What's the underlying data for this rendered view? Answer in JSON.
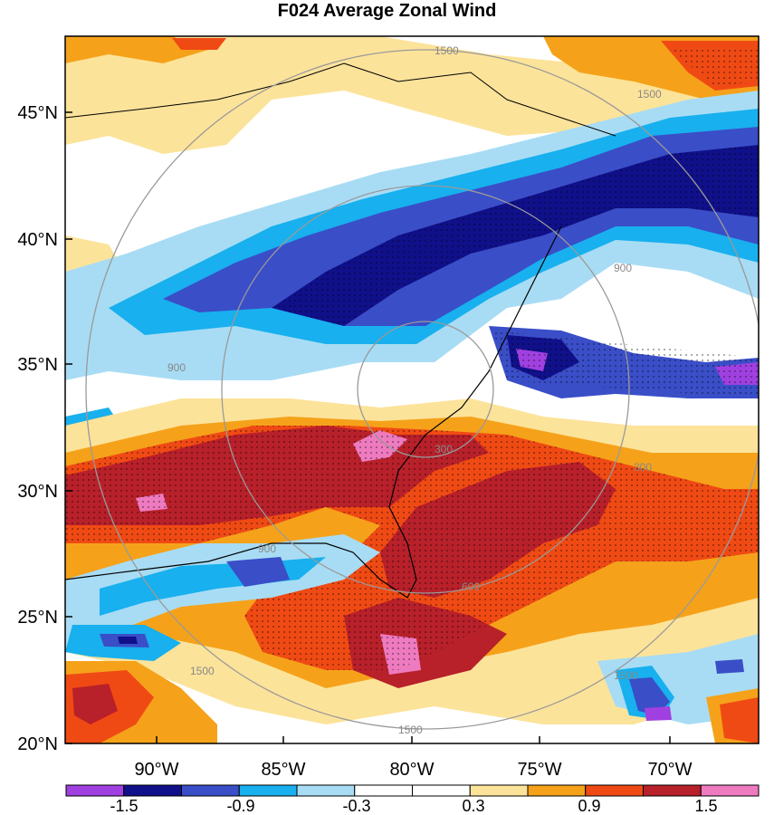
{
  "title": "F024 Average Zonal Wind",
  "map": {
    "lat_labels": [
      "45°N",
      "40°N",
      "35°N",
      "30°N",
      "25°N",
      "20°N"
    ],
    "lon_labels": [
      "90°W",
      "85°W",
      "80°W",
      "75°W",
      "70°W"
    ],
    "range_ring_labels": [
      "1500",
      "1500",
      "900",
      "900",
      "300",
      "300",
      "900",
      "1500",
      "1500",
      "1500",
      "600"
    ]
  },
  "colorbar": {
    "tick_labels": [
      "-1.5",
      "-0.9",
      "-0.3",
      "0.3",
      "0.9",
      "1.5"
    ],
    "colors": [
      "#a040e0",
      "#10108a",
      "#3a4ec8",
      "#18b0ee",
      "#a8dcf4",
      "#ffffff",
      "#ffffff",
      "#fce39a",
      "#f5a21a",
      "#f04a14",
      "#b8202a",
      "#ee7abf"
    ]
  }
}
